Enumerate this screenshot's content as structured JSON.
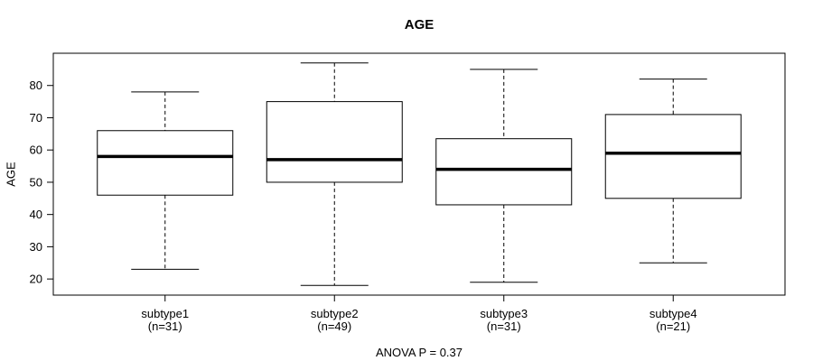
{
  "figure": {
    "title": "AGE",
    "ylabel": "AGE",
    "footer": "ANOVA P = 0.37"
  },
  "chart_data": {
    "type": "boxplot",
    "title": "AGE",
    "ylabel": "AGE",
    "xlabel": "",
    "annotation": "ANOVA P = 0.37",
    "ylim": [
      15,
      90
    ],
    "yticks": [
      20,
      30,
      40,
      50,
      60,
      70,
      80
    ],
    "grid": false,
    "legend_position": "none",
    "categories": [
      "subtype1",
      "subtype2",
      "subtype3",
      "subtype4"
    ],
    "series": [
      {
        "label": "subtype1",
        "n_label": "(n=31)",
        "n": 31,
        "whisker_low": 23,
        "q1": 46,
        "median": 58,
        "q3": 66,
        "whisker_high": 78
      },
      {
        "label": "subtype2",
        "n_label": "(n=49)",
        "n": 49,
        "whisker_low": 18,
        "q1": 50,
        "median": 57,
        "q3": 75,
        "whisker_high": 87
      },
      {
        "label": "subtype3",
        "n_label": "(n=31)",
        "n": 31,
        "whisker_low": 19,
        "q1": 43,
        "median": 54,
        "q3": 63.5,
        "whisker_high": 85
      },
      {
        "label": "subtype4",
        "n_label": "(n=21)",
        "n": 21,
        "whisker_low": 25,
        "q1": 45,
        "median": 59,
        "q3": 71,
        "whisker_high": 82
      }
    ],
    "colors": {
      "line": "#000000",
      "box_fill": "#ffffff",
      "background": "#ffffff"
    }
  }
}
